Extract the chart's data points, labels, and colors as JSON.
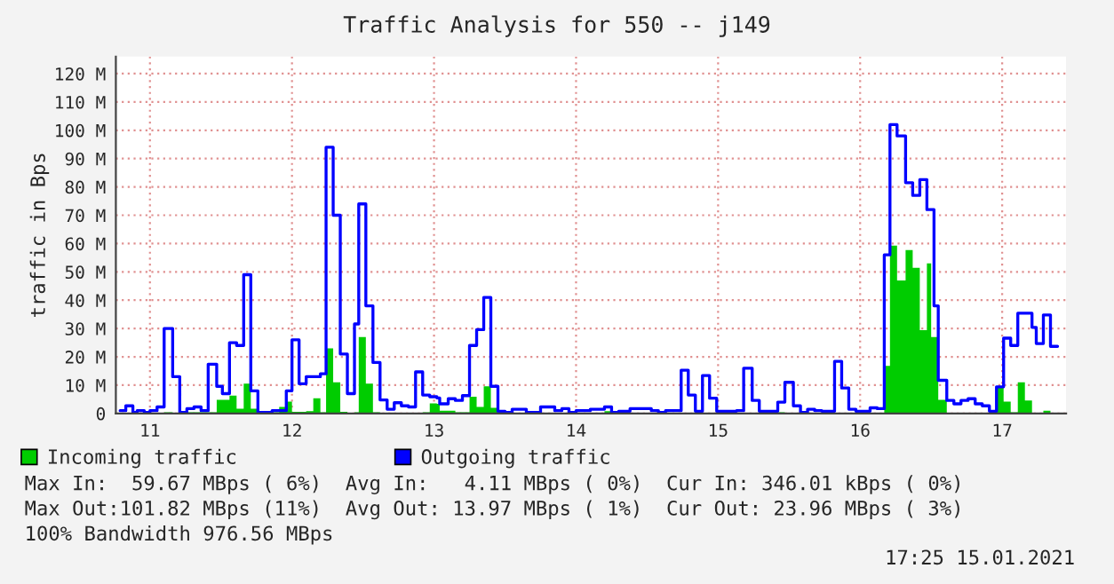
{
  "chart_data": {
    "type": "step",
    "title": "Traffic Analysis for 550 -- j149",
    "ylabel": "traffic in Bps",
    "x": [
      10.79,
      10.83,
      10.88,
      10.91,
      10.96,
      11.0,
      11.05,
      11.1,
      11.16,
      11.21,
      11.26,
      11.31,
      11.36,
      11.41,
      11.47,
      11.51,
      11.56,
      11.61,
      11.66,
      11.71,
      11.76,
      11.86,
      11.91,
      11.96,
      12.0,
      12.05,
      12.1,
      12.15,
      12.2,
      12.24,
      12.29,
      12.34,
      12.39,
      12.44,
      12.47,
      12.52,
      12.57,
      12.62,
      12.67,
      12.72,
      12.77,
      12.82,
      12.87,
      12.92,
      12.97,
      13.02,
      13.04,
      13.1,
      13.15,
      13.2,
      13.25,
      13.3,
      13.35,
      13.4,
      13.45,
      13.5,
      13.55,
      13.65,
      13.75,
      13.85,
      13.9,
      13.95,
      14.0,
      14.1,
      14.2,
      14.25,
      14.3,
      14.38,
      14.53,
      14.58,
      14.63,
      14.74,
      14.79,
      14.84,
      14.89,
      14.94,
      14.99,
      15.13,
      15.18,
      15.24,
      15.29,
      15.42,
      15.47,
      15.53,
      15.58,
      15.63,
      15.68,
      15.73,
      15.82,
      15.87,
      15.92,
      15.97,
      16.07,
      16.12,
      16.17,
      16.21,
      16.26,
      16.32,
      16.37,
      16.42,
      16.47,
      16.5,
      16.52,
      16.55,
      16.61,
      16.66,
      16.71,
      16.76,
      16.81,
      16.86,
      16.91,
      16.96,
      17.01,
      17.06,
      17.11,
      17.16,
      17.21,
      17.24,
      17.29,
      17.34,
      17.39
    ],
    "series": [
      {
        "name": "Incoming traffic",
        "type": "area",
        "color": "#00cc00",
        "values": [
          0,
          0,
          0,
          0,
          0,
          0,
          0,
          0.4,
          0,
          0,
          0.4,
          0.4,
          0.4,
          0.4,
          4.8,
          4.8,
          6.3,
          1.7,
          10.5,
          1.7,
          0,
          0.4,
          2.3,
          4.2,
          0.6,
          0.6,
          0.8,
          5.4,
          0.4,
          23,
          11,
          0.6,
          0.2,
          0.4,
          27,
          10.5,
          0.4,
          0,
          0,
          0,
          0,
          0,
          0,
          0.4,
          3.6,
          3.4,
          1,
          1,
          0.4,
          0.4,
          5.9,
          2.3,
          9.6,
          2,
          0,
          0,
          0,
          0,
          0,
          0,
          0,
          0,
          0,
          0,
          0.8,
          0,
          0,
          0,
          0,
          0,
          0,
          0,
          0,
          0,
          0,
          0,
          0,
          0,
          0,
          0,
          0,
          0.4,
          0,
          0,
          0,
          0,
          0,
          0,
          0,
          0,
          0,
          0,
          0,
          0,
          16.8,
          59.3,
          47,
          57.7,
          51.4,
          29.4,
          53,
          27,
          27,
          4.8,
          0,
          0,
          0,
          0,
          0,
          0,
          0,
          9.4,
          4.2,
          0.4,
          11,
          4.6,
          0,
          0,
          1,
          0,
          0
        ]
      },
      {
        "name": "Outgoing traffic",
        "color": "#0000ff",
        "values": [
          1,
          2.7,
          0.4,
          1,
          0.4,
          1,
          2.3,
          30,
          13,
          0.4,
          1.7,
          2.3,
          1,
          17.4,
          9.6,
          7,
          25,
          24,
          49,
          8,
          0.4,
          1,
          1,
          8,
          26,
          10.5,
          13,
          13,
          14,
          94,
          70,
          21,
          7,
          31.6,
          74,
          38,
          18,
          4.8,
          1.5,
          3.8,
          2.7,
          2.3,
          14.7,
          6.5,
          5.9,
          5.5,
          3.4,
          5.2,
          4.6,
          6.3,
          24,
          29.6,
          41,
          9.6,
          0.8,
          0.4,
          1.5,
          0.4,
          2.3,
          1,
          1.7,
          0.4,
          1,
          1.5,
          2.3,
          0.4,
          0.8,
          1.7,
          1,
          0.4,
          1,
          15.3,
          6.5,
          0.8,
          13.4,
          5.4,
          0.8,
          1,
          16,
          4.6,
          0.8,
          4,
          11,
          2.7,
          0.4,
          1.5,
          1,
          0.8,
          18.4,
          9,
          1.5,
          0.8,
          2,
          1.7,
          56,
          102,
          98,
          81.5,
          77,
          82.6,
          72,
          72,
          38,
          11.7,
          4.6,
          3.4,
          4.6,
          5.2,
          3.4,
          2.7,
          0.8,
          9.4,
          26.6,
          24,
          35.4,
          35.4,
          30.4,
          24.7,
          34.8,
          23.7,
          23.7
        ]
      }
    ],
    "xlim": [
      10.76,
      17.45
    ],
    "xticks": [
      11,
      12,
      13,
      14,
      15,
      16,
      17
    ],
    "ylim": [
      0,
      126
    ],
    "yticks": [
      0,
      {
        "value": 10,
        "label": "10 M"
      },
      {
        "value": 20,
        "label": "20 M"
      },
      {
        "value": 30,
        "label": "30 M"
      },
      {
        "value": 40,
        "label": "40 M"
      },
      {
        "value": 50,
        "label": "50 M"
      },
      {
        "value": 60,
        "label": "60 M"
      },
      {
        "value": 70,
        "label": "70 M"
      },
      {
        "value": 80,
        "label": "80 M"
      },
      {
        "value": 90,
        "label": "90 M"
      },
      {
        "value": 100,
        "label": "100 M"
      },
      {
        "value": 110,
        "label": "110 M"
      },
      {
        "value": 120,
        "label": "120 M"
      }
    ],
    "grid": true,
    "legend": "bottom",
    "annotations": [
      "Max In:  59.67 MBps ( 6%)  Avg In:   4.11 MBps ( 0%)  Cur In: 346.01 kBps ( 0%)",
      "Max Out:101.82 MBps (11%)  Avg Out: 13.97 MBps ( 1%)  Cur Out: 23.96 MBps ( 3%)",
      "100% Bandwidth 976.56 MBps",
      "17:25 15.01.2021"
    ]
  }
}
